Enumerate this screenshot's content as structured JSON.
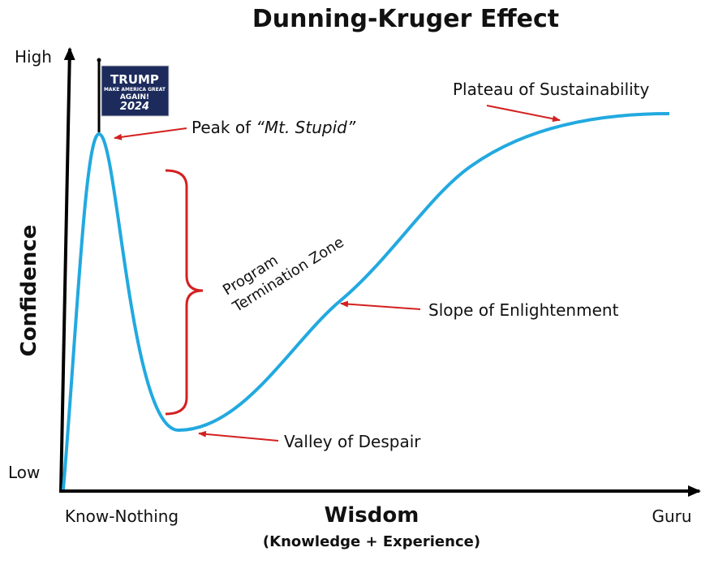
{
  "title": "Dunning-Kruger Effect",
  "y_axis": {
    "label": "Confidence",
    "high": "High",
    "low": "Low"
  },
  "x_axis": {
    "label": "Wisdom",
    "sublabel": "(Knowledge + Experience)",
    "left": "Know-Nothing",
    "right": "Guru"
  },
  "flag": {
    "line1": "TRUMP",
    "line2": "MAKE AMERICA GREAT",
    "line3": "AGAIN!",
    "line4": "2024"
  },
  "annotations": {
    "peak_prefix": "Peak of",
    "peak_name": "“Mt. Stupid”",
    "plateau": "Plateau of Sustainability",
    "slope": "Slope of Enlightenment",
    "valley": "Valley of Despair",
    "zone_line1": "Program",
    "zone_line2": "Termination Zone"
  }
}
